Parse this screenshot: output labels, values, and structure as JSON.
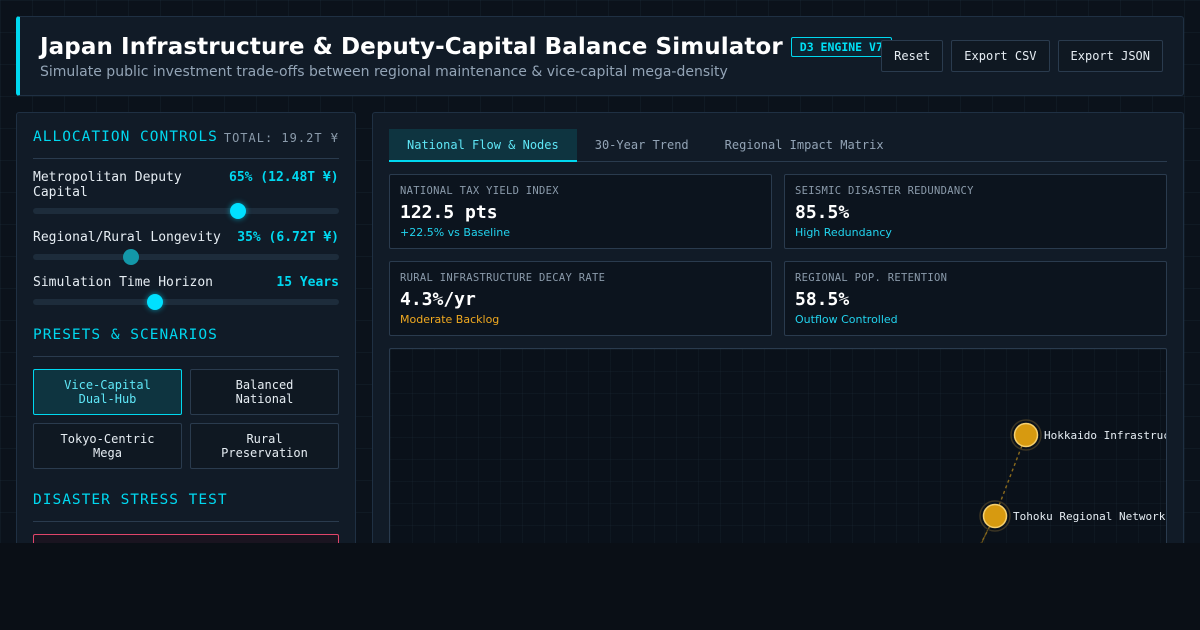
{
  "header": {
    "title": "Japan Infrastructure & Deputy-Capital Balance Simulator",
    "badge": "D3 ENGINE V7",
    "subtitle": "Simulate public investment trade-offs between regional maintenance & vice-capital mega-density",
    "actions": {
      "reset": "Reset",
      "export_csv": "Export CSV",
      "export_json": "Export JSON"
    },
    "accent_color": "#00d8f0"
  },
  "controls": {
    "title": "ALLOCATION CONTROLS",
    "total": "TOTAL: 19.2T ¥",
    "sliders": [
      {
        "label": "Metropolitan Deputy Capital",
        "value": "65% (12.48T ¥)",
        "level": 0.67
      },
      {
        "label": "Regional/Rural Longevity",
        "value": "35% (6.72T ¥)",
        "level": 0.32
      },
      {
        "label": "Simulation Time Horizon",
        "value": "15 Years",
        "level": 0.4
      }
    ]
  },
  "presets": {
    "title": "PRESETS & SCENARIOS",
    "items": [
      {
        "label": "Vice-Capital Dual-Hub",
        "active": true
      },
      {
        "label": "Balanced National",
        "active": false
      },
      {
        "label": "Tokyo-Centric Mega",
        "active": false
      },
      {
        "label": "Rural Preservation",
        "active": false
      }
    ]
  },
  "stress": {
    "title": "DISASTER STRESS TEST"
  },
  "tabs": [
    {
      "label": "National Flow & Nodes",
      "active": true
    },
    {
      "label": "30-Year Trend",
      "active": false
    },
    {
      "label": "Regional Impact Matrix",
      "active": false
    }
  ],
  "kpis": [
    {
      "label": "NATIONAL TAX YIELD INDEX",
      "value": "122.5 pts",
      "note": "+22.5% vs Baseline",
      "note_color": "#22d3ee"
    },
    {
      "label": "SEISMIC DISASTER REDUNDANCY",
      "value": "85.5%",
      "note": "High Redundancy",
      "note_color": "#22d3ee"
    },
    {
      "label": "RURAL INFRASTRUCTURE DECAY RATE",
      "value": "4.3%/yr",
      "note": "Moderate Backlog",
      "note_color": "#f0a920"
    },
    {
      "label": "REGIONAL POP. RETENTION",
      "value": "58.5%",
      "note": "Outflow Controlled",
      "note_color": "#22d3ee"
    }
  ],
  "map": {
    "node_color": "#d79a10",
    "nodes": [
      {
        "label": "Hokkaido Infrastructure"
      },
      {
        "label": "Tohoku Regional Network"
      }
    ]
  }
}
